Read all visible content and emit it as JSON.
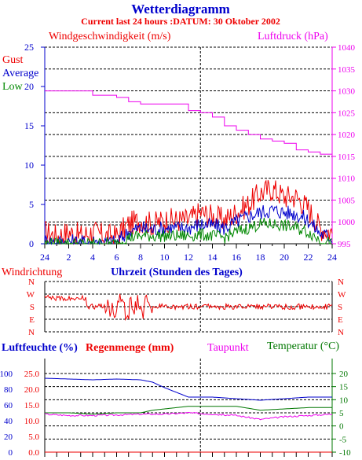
{
  "header": {
    "title": "Wetterdiagramm",
    "subtitle": "Current last 24 hours :DATUM: 30 Oktober 2002"
  },
  "colors": {
    "gust": "#ee0000",
    "average": "#0000cc",
    "low": "#008800",
    "pressure": "#ee00ee",
    "temperature": "#007700",
    "rain": "#ee0000",
    "grid": "#000000"
  },
  "chart_data": [
    {
      "type": "line",
      "title": "",
      "left_axis_title": "Windgeschwindigkeit (m/s)",
      "right_axis_title": "Luftdruck (hPa)",
      "xlabel": "Uhrzeit (Stunden des Tages)",
      "x_ticks": [
        "24",
        "2",
        "4",
        "6",
        "8",
        "10",
        "12",
        "14",
        "16",
        "18",
        "20",
        "22",
        "24"
      ],
      "ylim_left": [
        0,
        25
      ],
      "y_ticks_left": [
        "0",
        "5",
        "10",
        "15",
        "20",
        "25"
      ],
      "ylim_right": [
        995,
        1040
      ],
      "y_ticks_right": [
        "995",
        "1000",
        "1005",
        "1010",
        "1015",
        "1020",
        "1025",
        "1030",
        "1035",
        "1040"
      ],
      "legend": [
        "Gust",
        "Average",
        "Low"
      ],
      "series": [
        {
          "name": "Gust",
          "axis": "left",
          "x": [
            0,
            1,
            2,
            3,
            4,
            5,
            6,
            7,
            8,
            9,
            10,
            11,
            12,
            13,
            14,
            15,
            16,
            17,
            18,
            19,
            20,
            21,
            22,
            23,
            24
          ],
          "values": [
            1.5,
            1,
            1.5,
            1,
            1.5,
            1,
            1,
            2.5,
            3,
            2.5,
            3,
            3,
            3,
            4,
            3.5,
            3,
            4,
            5,
            6.5,
            7,
            6,
            6,
            4.5,
            2,
            1.5
          ]
        },
        {
          "name": "Average",
          "axis": "left",
          "x": [
            0,
            1,
            2,
            3,
            4,
            5,
            6,
            7,
            8,
            9,
            10,
            11,
            12,
            13,
            14,
            15,
            16,
            17,
            18,
            19,
            20,
            21,
            22,
            23,
            24
          ],
          "values": [
            0.3,
            0.2,
            0.3,
            0.2,
            0.3,
            0.2,
            0.2,
            1.5,
            2,
            1.8,
            2,
            2,
            2,
            2.5,
            2.3,
            2,
            2.8,
            3.5,
            4,
            4.3,
            4,
            3.8,
            3,
            1.3,
            0.8
          ]
        },
        {
          "name": "Low",
          "axis": "left",
          "x": [
            0,
            1,
            2,
            3,
            4,
            5,
            6,
            7,
            8,
            9,
            10,
            11,
            12,
            13,
            14,
            15,
            16,
            17,
            18,
            19,
            20,
            21,
            22,
            23,
            24
          ],
          "values": [
            0,
            0,
            0,
            0,
            0,
            0,
            0,
            0.8,
            1,
            1,
            1,
            1,
            1,
            1.2,
            1,
            0.8,
            1.5,
            2,
            2.5,
            2.5,
            2.3,
            2,
            1.5,
            0.5,
            0
          ]
        },
        {
          "name": "Luftdruck",
          "axis": "right",
          "x": [
            0,
            3,
            4,
            5,
            6,
            7,
            8,
            10,
            11,
            12,
            13,
            14,
            15,
            16,
            17,
            18,
            19,
            20,
            21,
            22,
            23,
            24
          ],
          "values": [
            1030,
            1030,
            1029,
            1029,
            1028.5,
            1027.5,
            1027,
            1027,
            1027,
            1025.5,
            1025,
            1024,
            1022,
            1021,
            1020,
            1019,
            1018.5,
            1018,
            1016.5,
            1016,
            1015.5,
            1015
          ]
        }
      ]
    },
    {
      "type": "line",
      "title": "Windrichtung",
      "categories": [
        "N",
        "W",
        "S",
        "E",
        "N"
      ],
      "series": [
        {
          "name": "Windrichtung",
          "x": [
            0,
            1,
            2,
            3,
            4,
            5,
            6,
            7,
            8,
            9,
            10,
            11,
            12,
            13,
            14,
            15,
            16,
            17,
            18,
            19,
            20,
            21,
            22,
            23,
            24
          ],
          "values": [
            "W",
            "W",
            "W",
            "W",
            "S",
            "S",
            "S",
            "S",
            "S",
            "S",
            "S",
            "S",
            "S",
            "S",
            "S",
            "S",
            "S",
            "S",
            "S",
            "S",
            "S",
            "S",
            "S",
            "S",
            "S"
          ]
        }
      ]
    },
    {
      "type": "line",
      "left_axis_title_1": "Luftfeuchte (%)",
      "left_axis_title_2": "Regenmenge (mm)",
      "mid_label": "Taupunkt",
      "right_axis_title": "Temperatur (°C)",
      "ylim_humidity": [
        0,
        100
      ],
      "y_ticks_humidity": [
        "0",
        "20",
        "40",
        "60",
        "80",
        "100"
      ],
      "ylim_rain": [
        0,
        25
      ],
      "y_ticks_rain": [
        "0.0",
        "5.0",
        "10.0",
        "15.0",
        "20.0",
        "25.0"
      ],
      "ylim_temperature": [
        -10,
        20
      ],
      "y_ticks_temperature": [
        "-10",
        "-5",
        "0",
        "5",
        "10",
        "15",
        "20"
      ],
      "series": [
        {
          "name": "Luftfeuchte (%)",
          "axis": "humidity",
          "x": [
            0,
            2,
            4,
            6,
            8,
            9,
            10,
            12,
            14,
            16,
            18,
            20,
            22,
            24
          ],
          "values": [
            94,
            93,
            92,
            93,
            92,
            89,
            82,
            70,
            70,
            68,
            66,
            68,
            70,
            70
          ]
        },
        {
          "name": "Temperatur (°C)",
          "axis": "temperature",
          "x": [
            0,
            2,
            4,
            6,
            8,
            9,
            10,
            12,
            14,
            16,
            18,
            20,
            22,
            24
          ],
          "values": [
            5,
            5,
            4.5,
            5,
            5,
            6,
            6.5,
            7.5,
            7.5,
            7.5,
            6,
            6.5,
            7,
            7
          ]
        },
        {
          "name": "Taupunkt",
          "axis": "temperature",
          "x": [
            0,
            2,
            4,
            6,
            8,
            10,
            12,
            14,
            16,
            18,
            20,
            22,
            24
          ],
          "values": [
            4.5,
            4,
            4,
            4.2,
            4.5,
            4.5,
            5,
            4.5,
            4,
            2.5,
            3.5,
            4,
            4.5
          ]
        },
        {
          "name": "Regenmenge (mm)",
          "axis": "rain",
          "x": [
            0,
            24
          ],
          "values": [
            0,
            0
          ]
        }
      ]
    }
  ]
}
